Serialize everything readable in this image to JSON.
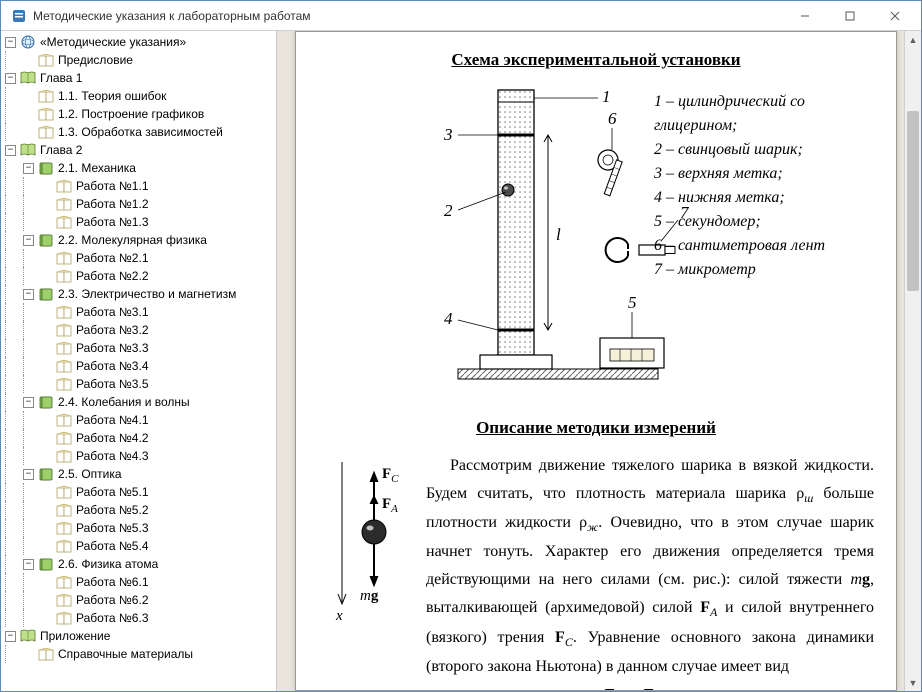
{
  "window": {
    "title": "Методические указания к лабораторным работам"
  },
  "tree": {
    "root": "«Методические указания»",
    "preface": "Предисловие",
    "ch1": "Глава 1",
    "ch1_1": "1.1. Теория ошибок",
    "ch1_2": "1.2. Построение графиков",
    "ch1_3": "1.3. Обработка зависимостей",
    "ch2": "Глава 2",
    "s21": "2.1. Механика",
    "r11": "Работа №1.1",
    "r12": "Работа №1.2",
    "r13": "Работа №1.3",
    "s22": "2.2. Молекулярная физика",
    "r21": "Работа №2.1",
    "r22": "Работа №2.2",
    "s23": "2.3. Электричество и магнетизм",
    "r31": "Работа №3.1",
    "r32": "Работа №3.2",
    "r33": "Работа №3.3",
    "r34": "Работа №3.4",
    "r35": "Работа №3.5",
    "s24": "2.4. Колебания и волны",
    "r41": "Работа №4.1",
    "r42": "Работа №4.2",
    "r43": "Работа №4.3",
    "s25": "2.5. Оптика",
    "r51": "Работа №5.1",
    "r52": "Работа №5.2",
    "r53": "Работа №5.3",
    "r54": "Работа №5.4",
    "s26": "2.6. Физика атома",
    "r61": "Работа №6.1",
    "r62": "Работа №6.2",
    "r63": "Работа №6.3",
    "app": "Приложение",
    "ref": "Справочные материалы"
  },
  "doc": {
    "scheme_title": "Схема экспериментальной установки",
    "legend": {
      "l1": " – цилиндрический со глицерином;",
      "l2": " – свинцовый шарик;",
      "l3": " – верхняя метка;",
      "l4": " – нижняя метка;",
      "l5": " – секундомер;",
      "l6": " – сантиметровая лент",
      "l7": " – микрометр"
    },
    "desc_title": "Описание методики измерений",
    "para_html": "Рассмотрим движение тяжелого шарика в вязкой жидкости. Будем считать, что плотность материала шарика ρ<sub><i>ш</i></sub> больше плотности жидкости ρ<sub><i>ж</i></sub>. Очевидно, что в этом случае шарик начнет тонуть. Характер его движения определяется тремя действующими на него силами (см. рис.): силой тяжести <i>m</i><b>g</b>, выталкивающей (архимедовой) силой <b>F</b><sub><i>A</i></sub> и силой внутреннего (вязкого) трения <b>F</b><sub><i>C</i></sub>. Уравнение основного закона динамики (второго закона Ньютона) в данном случае имеет вид",
    "formula_html": "<i>m</i><b>a</b> = <i>m</i><b>g</b> + <b>F</b><sub><i>A</i></sub> + <b>F</b><sub><i>C</i></sub> ,",
    "axis": {
      "x_label": "x",
      "mg_label": "mg",
      "fa_label": "F",
      "fc_label": "F",
      "a_sub": "A",
      "c_sub": "C",
      "l_label": "l"
    },
    "scheme_labels": {
      "n1": "1",
      "n2": "2",
      "n3": "3",
      "n4": "4",
      "n5": "5",
      "n6": "6",
      "n7": "7"
    },
    "colors": {
      "paper": "#ffffff",
      "bg": "#e8e4db",
      "stroke": "#000000",
      "hatch": "#8a8a8a"
    }
  }
}
